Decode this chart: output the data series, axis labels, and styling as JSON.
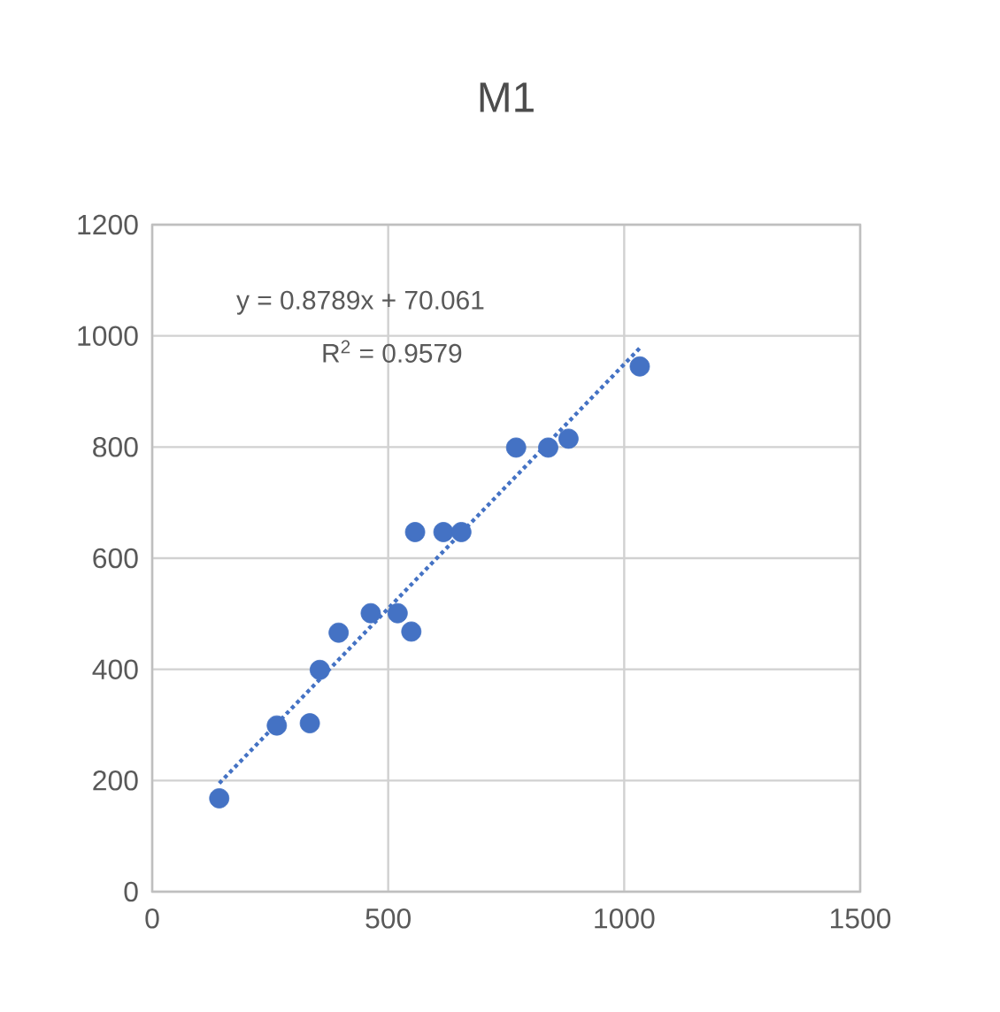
{
  "chart_data": {
    "type": "scatter",
    "title": "M1",
    "xlim": [
      0,
      1500
    ],
    "ylim": [
      0,
      1200
    ],
    "xticks": [
      0,
      500,
      1000,
      1500
    ],
    "yticks": [
      0,
      200,
      400,
      600,
      800,
      1000,
      1200
    ],
    "grid": true,
    "annotations": [
      "y = 0.8789x + 70.061",
      "R$^{2}$ = 0.9579"
    ],
    "series": [
      {
        "color": "#4472c4",
        "marker": "circle",
        "x": [
          142,
          264,
          334,
          355,
          395,
          463,
          520,
          549,
          557,
          617,
          655,
          771,
          839,
          882,
          1033
        ],
        "values": [
          168,
          299,
          303,
          399,
          466,
          501,
          501,
          468,
          647,
          647,
          647,
          799,
          799,
          815,
          945
        ]
      },
      {
        "type": "line",
        "color": "#4472c4",
        "marker": "none",
        "line_style": "dotted",
        "x": [
          142,
          1033
        ],
        "values": [
          195,
          978
        ]
      }
    ]
  }
}
